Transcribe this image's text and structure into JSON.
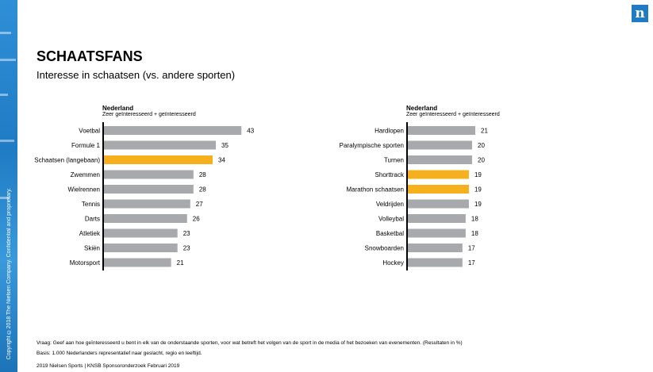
{
  "title": "SCHAATSFANS",
  "subtitle": "Interesse in schaatsen (vs. andere sporten)",
  "colors": {
    "bar": "#a7a9ac",
    "highlight": "#f6b01e",
    "axis": "#000000",
    "brand": "#1f7cc4"
  },
  "logo_icon": "nielsen-n-logo",
  "copyright": "Copyright ©2018  The Nielsen Company. Confidential and proprietary.",
  "chart_data": [
    {
      "type": "bar",
      "orientation": "horizontal",
      "header": "Nederland",
      "subheader": "Zeer geïnteresseerd + geïnteresseerd",
      "categories": [
        "Voetbal",
        "Formule 1",
        "Schaatsen (langebaan)",
        "Zwemmen",
        "Wielrennen",
        "Tennis",
        "Darts",
        "Atletiek",
        "Skiën",
        "Motorsport"
      ],
      "values": [
        43,
        35,
        34,
        28,
        28,
        27,
        26,
        23,
        23,
        21
      ],
      "highlighted": [
        "Schaatsen (langebaan)"
      ],
      "grid": false
    },
    {
      "type": "bar",
      "orientation": "horizontal",
      "header": "Nederland",
      "subheader": "Zeer geïnteresseerd + geïnteresseerd",
      "categories": [
        "Hardlopen",
        "Paralympische sporten",
        "Turnen",
        "Shorttrack",
        "Marathon schaatsen",
        "Veldrijden",
        "Volleybal",
        "Basketbal",
        "Snowboarden",
        "Hockey"
      ],
      "values": [
        21,
        20,
        20,
        19,
        19,
        19,
        18,
        18,
        17,
        17
      ],
      "highlighted": [
        "Shorttrack",
        "Marathon schaatsen"
      ],
      "grid": false
    }
  ],
  "footer": {
    "question": "Vraag: Geef aan hoe geïnteresseerd u bent in elk van de onderstaande sporten, voor wat betreft het volgen van de sport in de media of het bezoeken van evenementen. (Resultaten in %)",
    "basis": "Basis: 1.000 Nederlanders representatief naar geslacht, regio en leeftijd.",
    "source": "2019 Nielsen Sports  |  KNSB Sponsoronderzoek Februari 2019"
  }
}
